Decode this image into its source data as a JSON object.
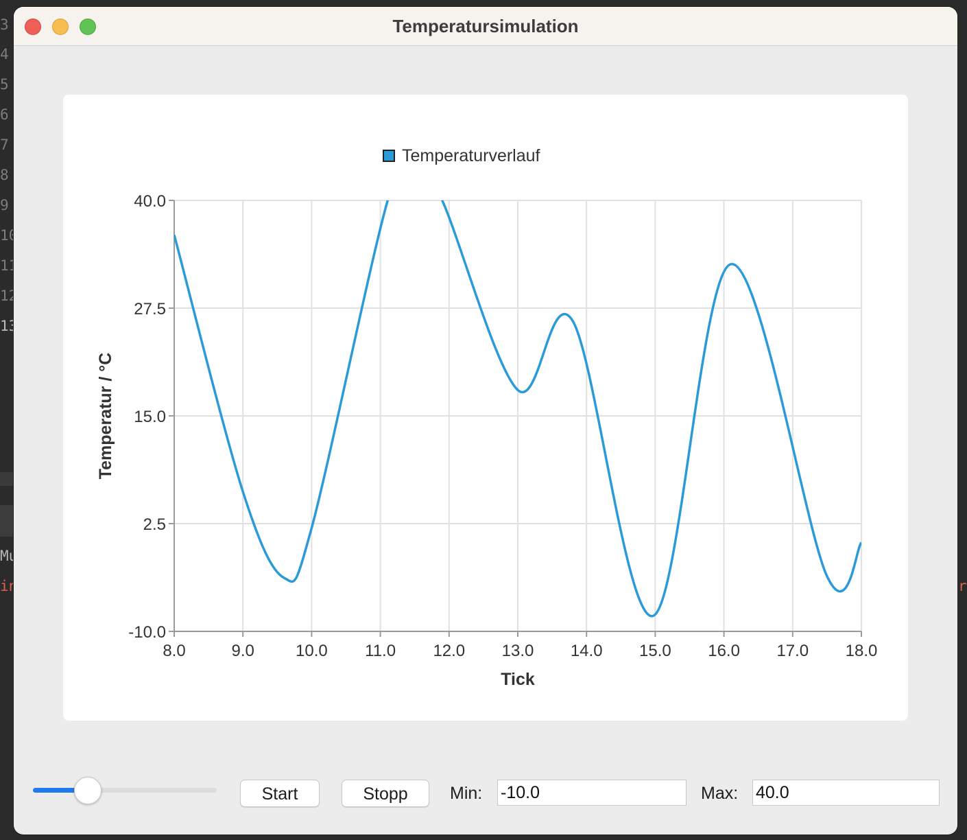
{
  "window": {
    "title": "Temperatursimulation"
  },
  "background": {
    "gutter_numbers": [
      "3",
      "4",
      "5",
      "6",
      "7",
      "8",
      "9",
      "10",
      "11",
      "12",
      "13"
    ],
    "console_lines": [
      "Mu",
      "in"
    ],
    "right_edge_text": "re"
  },
  "controls": {
    "speed_slider_level": 0.3,
    "start_label": "Start",
    "stop_label": "Stopp",
    "min_label": "Min:",
    "min_value": "-10.0",
    "max_label": "Max:",
    "max_value": "40.0"
  },
  "chart_data": {
    "type": "line",
    "title": "",
    "xlabel": "Tick",
    "ylabel": "Temperatur / °C",
    "xlim": [
      8.0,
      18.0
    ],
    "ylim": [
      -10.0,
      40.0
    ],
    "x_ticks": [
      "8.0",
      "9.0",
      "10.0",
      "11.0",
      "12.0",
      "13.0",
      "14.0",
      "15.0",
      "16.0",
      "17.0",
      "18.0"
    ],
    "y_ticks": [
      "40.0",
      "27.5",
      "15.0",
      "2.5",
      "-10.0"
    ],
    "grid": true,
    "legend_position": "top-center",
    "series": [
      {
        "name": "Temperaturverlauf",
        "color": "#2a9ad8",
        "x": [
          8.0,
          9.0,
          9.6,
          10.0,
          11.1,
          11.5,
          11.9,
          13.0,
          13.8,
          14.97,
          16.1,
          17.5,
          18.0
        ],
        "y": [
          36.0,
          6.2,
          -3.8,
          2.0,
          39.8,
          44.0,
          40.0,
          18.0,
          26.0,
          -8.2,
          32.6,
          -3.6,
          0.3
        ]
      }
    ],
    "colors": {
      "line": "#2a9ad8",
      "grid": "#e1e1e1",
      "axis": "#9a9a9a"
    }
  }
}
